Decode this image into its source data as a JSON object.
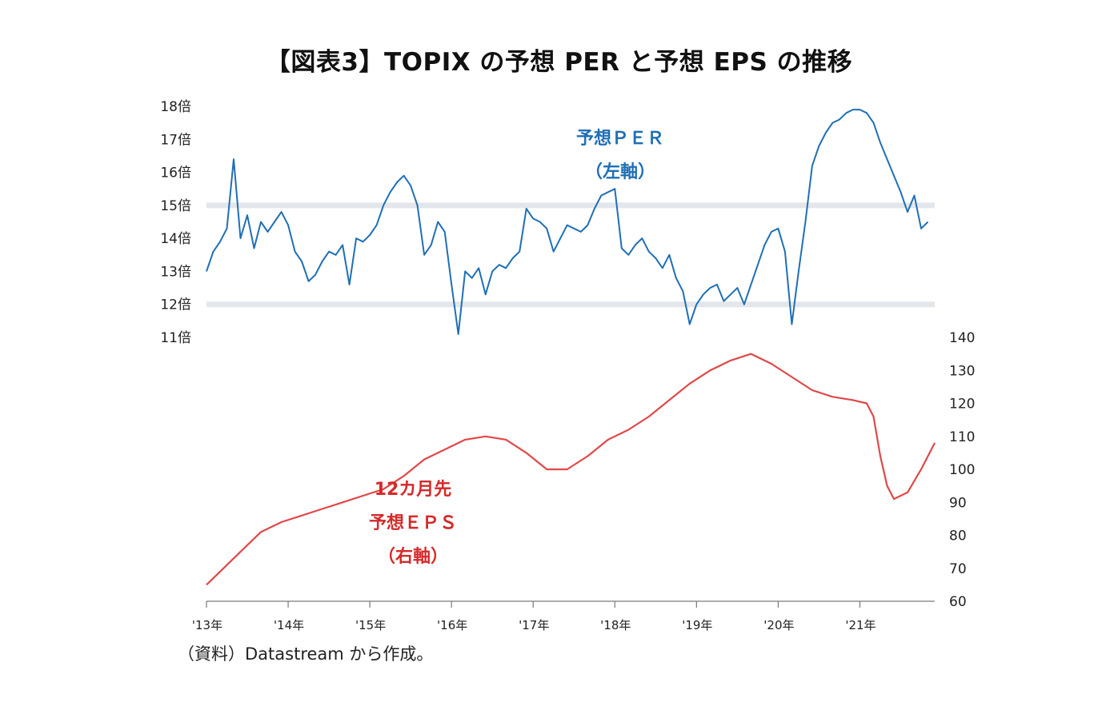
{
  "title": "【図表3】TOPIX の予想 PER と予想 EPS の推移",
  "source": "（資料）Datastream から作成。",
  "chart_data": {
    "type": "line",
    "title": "【図表3】TOPIX の予想 PER と予想 EPS の推移",
    "x_range": [
      "2013-01",
      "2021-12"
    ],
    "x_tick_labels": [
      "'13年",
      "'14年",
      "'15年",
      "'16年",
      "'17年",
      "'18年",
      "'19年",
      "'20年",
      "'21年"
    ],
    "left_axis": {
      "range": [
        11,
        18
      ],
      "tick_labels": [
        "11倍",
        "12倍",
        "13倍",
        "14倍",
        "15倍",
        "16倍",
        "17倍",
        "18倍"
      ],
      "reference_lines": [
        12,
        15
      ]
    },
    "right_axis": {
      "range": [
        60,
        140
      ],
      "tick_labels": [
        "60",
        "70",
        "80",
        "90",
        "100",
        "110",
        "120",
        "130",
        "140"
      ]
    },
    "series": [
      {
        "name_lines": [
          "予想ＰＥＲ",
          "（左軸）"
        ],
        "axis": "left",
        "color": "#1f6fb5",
        "points": [
          [
            "2013-01",
            13.0
          ],
          [
            "2013-02",
            13.6
          ],
          [
            "2013-03",
            13.9
          ],
          [
            "2013-04",
            14.3
          ],
          [
            "2013-05",
            16.4
          ],
          [
            "2013-06",
            14.0
          ],
          [
            "2013-07",
            14.7
          ],
          [
            "2013-08",
            13.7
          ],
          [
            "2013-09",
            14.5
          ],
          [
            "2013-10",
            14.2
          ],
          [
            "2013-11",
            14.5
          ],
          [
            "2013-12",
            14.8
          ],
          [
            "2014-01",
            14.4
          ],
          [
            "2014-02",
            13.6
          ],
          [
            "2014-03",
            13.3
          ],
          [
            "2014-04",
            12.7
          ],
          [
            "2014-05",
            12.9
          ],
          [
            "2014-06",
            13.3
          ],
          [
            "2014-07",
            13.6
          ],
          [
            "2014-08",
            13.5
          ],
          [
            "2014-09",
            13.8
          ],
          [
            "2014-10",
            12.6
          ],
          [
            "2014-11",
            14.0
          ],
          [
            "2014-12",
            13.9
          ],
          [
            "2015-01",
            14.1
          ],
          [
            "2015-02",
            14.4
          ],
          [
            "2015-03",
            15.0
          ],
          [
            "2015-04",
            15.4
          ],
          [
            "2015-05",
            15.7
          ],
          [
            "2015-06",
            15.9
          ],
          [
            "2015-07",
            15.6
          ],
          [
            "2015-08",
            15.0
          ],
          [
            "2015-09",
            13.5
          ],
          [
            "2015-10",
            13.8
          ],
          [
            "2015-11",
            14.5
          ],
          [
            "2015-12",
            14.2
          ],
          [
            "2016-01",
            12.6
          ],
          [
            "2016-02",
            11.1
          ],
          [
            "2016-03",
            13.0
          ],
          [
            "2016-04",
            12.8
          ],
          [
            "2016-05",
            13.1
          ],
          [
            "2016-06",
            12.3
          ],
          [
            "2016-07",
            13.0
          ],
          [
            "2016-08",
            13.2
          ],
          [
            "2016-09",
            13.1
          ],
          [
            "2016-10",
            13.4
          ],
          [
            "2016-11",
            13.6
          ],
          [
            "2016-12",
            14.9
          ],
          [
            "2017-01",
            14.6
          ],
          [
            "2017-02",
            14.5
          ],
          [
            "2017-03",
            14.3
          ],
          [
            "2017-04",
            13.6
          ],
          [
            "2017-05",
            14.0
          ],
          [
            "2017-06",
            14.4
          ],
          [
            "2017-07",
            14.3
          ],
          [
            "2017-08",
            14.2
          ],
          [
            "2017-09",
            14.4
          ],
          [
            "2017-10",
            14.9
          ],
          [
            "2017-11",
            15.3
          ],
          [
            "2017-12",
            15.4
          ],
          [
            "2018-01",
            15.5
          ],
          [
            "2018-02",
            13.7
          ],
          [
            "2018-03",
            13.5
          ],
          [
            "2018-04",
            13.8
          ],
          [
            "2018-05",
            14.0
          ],
          [
            "2018-06",
            13.6
          ],
          [
            "2018-07",
            13.4
          ],
          [
            "2018-08",
            13.1
          ],
          [
            "2018-09",
            13.5
          ],
          [
            "2018-10",
            12.8
          ],
          [
            "2018-11",
            12.4
          ],
          [
            "2018-12",
            11.4
          ],
          [
            "2019-01",
            12.0
          ],
          [
            "2019-02",
            12.3
          ],
          [
            "2019-03",
            12.5
          ],
          [
            "2019-04",
            12.6
          ],
          [
            "2019-05",
            12.1
          ],
          [
            "2019-06",
            12.3
          ],
          [
            "2019-07",
            12.5
          ],
          [
            "2019-08",
            12.0
          ],
          [
            "2019-09",
            12.6
          ],
          [
            "2019-10",
            13.2
          ],
          [
            "2019-11",
            13.8
          ],
          [
            "2019-12",
            14.2
          ],
          [
            "2020-01",
            14.3
          ],
          [
            "2020-02",
            13.6
          ],
          [
            "2020-03",
            11.4
          ],
          [
            "2020-04",
            13.0
          ],
          [
            "2020-05",
            14.5
          ],
          [
            "2020-06",
            16.2
          ],
          [
            "2020-07",
            16.8
          ],
          [
            "2020-08",
            17.2
          ],
          [
            "2020-09",
            17.5
          ],
          [
            "2020-10",
            17.6
          ],
          [
            "2020-11",
            17.8
          ],
          [
            "2020-12",
            17.9
          ],
          [
            "2021-01",
            17.9
          ],
          [
            "2021-02",
            17.8
          ],
          [
            "2021-03",
            17.5
          ],
          [
            "2021-04",
            16.9
          ],
          [
            "2021-05",
            16.4
          ],
          [
            "2021-06",
            15.9
          ],
          [
            "2021-07",
            15.4
          ],
          [
            "2021-08",
            14.8
          ],
          [
            "2021-09",
            15.3
          ],
          [
            "2021-10",
            14.3
          ],
          [
            "2021-11",
            14.5
          ]
        ]
      },
      {
        "name_lines": [
          "12カ月先",
          "予想ＥＰＳ",
          "（右軸）"
        ],
        "axis": "right",
        "color": "#e04848",
        "points": [
          [
            "2013-01",
            65
          ],
          [
            "2013-03",
            69
          ],
          [
            "2013-06",
            75
          ],
          [
            "2013-09",
            81
          ],
          [
            "2013-12",
            84
          ],
          [
            "2014-03",
            86
          ],
          [
            "2014-06",
            88
          ],
          [
            "2014-09",
            90
          ],
          [
            "2014-12",
            92
          ],
          [
            "2015-03",
            94
          ],
          [
            "2015-06",
            98
          ],
          [
            "2015-09",
            103
          ],
          [
            "2015-12",
            106
          ],
          [
            "2016-03",
            109
          ],
          [
            "2016-06",
            110
          ],
          [
            "2016-09",
            109
          ],
          [
            "2016-12",
            105
          ],
          [
            "2017-03",
            100
          ],
          [
            "2017-06",
            100
          ],
          [
            "2017-09",
            104
          ],
          [
            "2017-12",
            109
          ],
          [
            "2018-03",
            112
          ],
          [
            "2018-06",
            116
          ],
          [
            "2018-09",
            121
          ],
          [
            "2018-12",
            126
          ],
          [
            "2019-03",
            130
          ],
          [
            "2019-06",
            133
          ],
          [
            "2019-09",
            135
          ],
          [
            "2019-12",
            132
          ],
          [
            "2020-03",
            128
          ],
          [
            "2020-06",
            124
          ],
          [
            "2020-09",
            122
          ],
          [
            "2020-12",
            121
          ],
          [
            "2021-02",
            120
          ],
          [
            "2021-03",
            116
          ],
          [
            "2021-04",
            104
          ],
          [
            "2021-05",
            95
          ],
          [
            "2021-06",
            91
          ],
          [
            "2021-08",
            93
          ],
          [
            "2021-10",
            100
          ],
          [
            "2021-12",
            108
          ]
        ]
      }
    ]
  }
}
